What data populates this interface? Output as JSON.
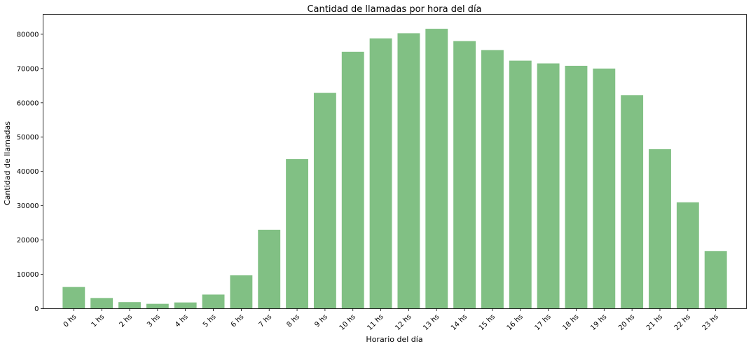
{
  "chart_data": {
    "type": "bar",
    "title": "Cantidad de llamadas por hora del día",
    "xlabel": "Horario del día",
    "ylabel": "Cantidad de llamadas",
    "categories": [
      "0 hs",
      "1 hs",
      "2 hs",
      "3 hs",
      "4 hs",
      "5 hs",
      "6 hs",
      "7 hs",
      "8 hs",
      "9 hs",
      "10 hs",
      "11 hs",
      "12 hs",
      "13 hs",
      "14 hs",
      "15 hs",
      "16 hs",
      "17 hs",
      "18 hs",
      "19 hs",
      "20 hs",
      "21 hs",
      "22 hs",
      "23 hs"
    ],
    "values": [
      6300,
      3100,
      1900,
      1400,
      1800,
      4100,
      9700,
      23000,
      43600,
      62900,
      74900,
      78800,
      80300,
      81600,
      78000,
      75400,
      72300,
      71500,
      70800,
      70000,
      62200,
      46500,
      31000,
      16800
    ],
    "ylim": [
      0,
      85800
    ],
    "yticks": [
      0,
      10000,
      20000,
      30000,
      40000,
      50000,
      60000,
      70000,
      80000
    ],
    "ytick_labels": [
      "0",
      "10000",
      "20000",
      "30000",
      "40000",
      "50000",
      "60000",
      "70000",
      "80000"
    ],
    "bar_color": "#81c084",
    "grid": false,
    "legend": false
  }
}
